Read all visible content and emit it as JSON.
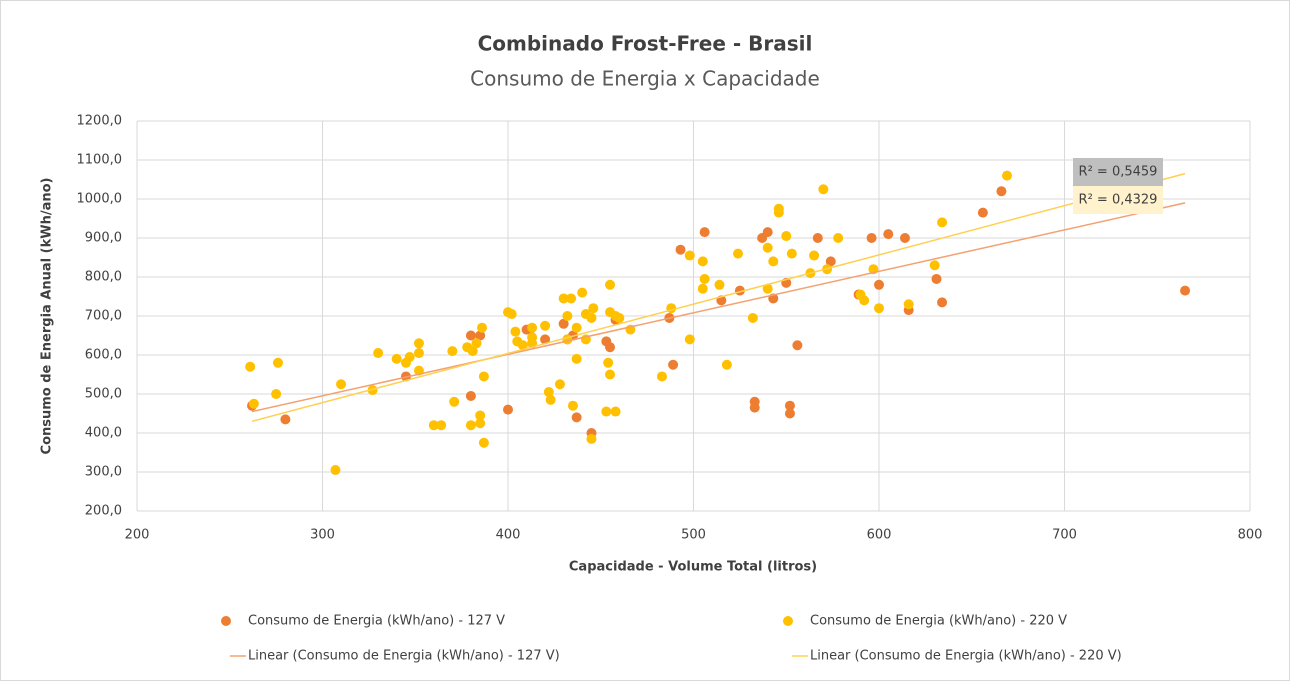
{
  "chart_data": {
    "type": "scatter",
    "title": "Combinado Frost-Free - Brasil",
    "subtitle": "Consumo de Energia x Capacidade",
    "x_label": "Capacidade - Volume Total (litros)",
    "y_label": "Consumo de Energia Anual (kWh/ano)",
    "xlim": [
      200,
      800
    ],
    "xticks": [
      200,
      300,
      400,
      500,
      600,
      700,
      800
    ],
    "ylim": [
      200,
      1200
    ],
    "yticks": [
      {
        "value": 200,
        "label": "200,0"
      },
      {
        "value": 300,
        "label": "300,0"
      },
      {
        "value": 400,
        "label": "400,0"
      },
      {
        "value": 500,
        "label": "500,0"
      },
      {
        "value": 600,
        "label": "600,0"
      },
      {
        "value": 700,
        "label": "700,0"
      },
      {
        "value": 800,
        "label": "800,0"
      },
      {
        "value": 900,
        "label": "900,0"
      },
      {
        "value": 1000,
        "label": "1000,0"
      },
      {
        "value": 1100,
        "label": "1100,0"
      },
      {
        "value": 1200,
        "label": "1200,0"
      }
    ],
    "grid": true,
    "legend": "bottom",
    "series": [
      {
        "name": "Consumo de Energia (kWh/ano) - 127 V",
        "color": "#ED7D31",
        "x": [
          262,
          280,
          345,
          380,
          380,
          385,
          400,
          410,
          412,
          420,
          430,
          432,
          435,
          437,
          445,
          453,
          455,
          458,
          487,
          489,
          493,
          506,
          515,
          525,
          533,
          533,
          537,
          540,
          543,
          550,
          552,
          552,
          556,
          567,
          574,
          589,
          596,
          600,
          605,
          614,
          616,
          631,
          634,
          656,
          666,
          765
        ],
        "values": [
          470,
          435,
          545,
          495,
          650,
          650,
          460,
          665,
          665,
          640,
          680,
          640,
          650,
          440,
          400,
          635,
          620,
          690,
          695,
          575,
          870,
          915,
          740,
          765,
          480,
          465,
          900,
          915,
          745,
          785,
          470,
          450,
          625,
          900,
          840,
          755,
          900,
          780,
          910,
          900,
          715,
          795,
          735,
          965,
          1020,
          765
        ]
      },
      {
        "name": "Consumo de Energia (kWh/ano) - 220 V",
        "color": "#FFC000",
        "x": [
          261,
          263,
          275,
          276,
          307,
          310,
          327,
          330,
          340,
          345,
          347,
          352,
          352,
          352,
          360,
          364,
          370,
          371,
          378,
          380,
          381,
          383,
          385,
          385,
          386,
          387,
          387,
          400,
          402,
          404,
          405,
          408,
          413,
          413,
          413,
          420,
          422,
          423,
          428,
          430,
          432,
          432,
          434,
          435,
          437,
          437,
          440,
          442,
          442,
          445,
          445,
          446,
          453,
          454,
          455,
          455,
          455,
          458,
          458,
          460,
          466,
          483,
          488,
          498,
          498,
          505,
          505,
          506,
          514,
          518,
          524,
          532,
          540,
          540,
          543,
          546,
          546,
          550,
          553,
          563,
          565,
          570,
          572,
          578,
          590,
          592,
          597,
          600,
          616,
          630,
          634,
          669
        ],
        "values": [
          570,
          475,
          500,
          580,
          305,
          525,
          510,
          605,
          590,
          580,
          595,
          630,
          605,
          560,
          420,
          420,
          610,
          480,
          620,
          420,
          610,
          630,
          445,
          425,
          670,
          545,
          375,
          710,
          705,
          660,
          635,
          625,
          670,
          645,
          630,
          675,
          505,
          485,
          525,
          745,
          700,
          640,
          745,
          470,
          590,
          670,
          760,
          705,
          640,
          385,
          695,
          720,
          455,
          580,
          550,
          780,
          710,
          455,
          700,
          695,
          665,
          545,
          720,
          855,
          640,
          840,
          770,
          795,
          780,
          575,
          860,
          695,
          770,
          875,
          840,
          965,
          975,
          905,
          860,
          810,
          855,
          1025,
          820,
          900,
          755,
          740,
          820,
          720,
          730,
          830,
          940,
          1060
        ]
      }
    ],
    "trendlines": [
      {
        "name": "Linear (Consumo de Energia (kWh/ano) - 127 V)",
        "color": "#F4A070",
        "x": [
          262,
          765
        ],
        "values": [
          455,
          990
        ]
      },
      {
        "name": "Linear (Consumo de Energia (kWh/ano) - 220 V)",
        "color": "#FFD050",
        "x": [
          262,
          765
        ],
        "values": [
          430,
          1065
        ]
      }
    ],
    "annotations": [
      {
        "text": "R² = 0,5459",
        "background": "#BFBFBF"
      },
      {
        "text": "R² = 0,4329",
        "background": "#FFF2CC"
      }
    ]
  }
}
